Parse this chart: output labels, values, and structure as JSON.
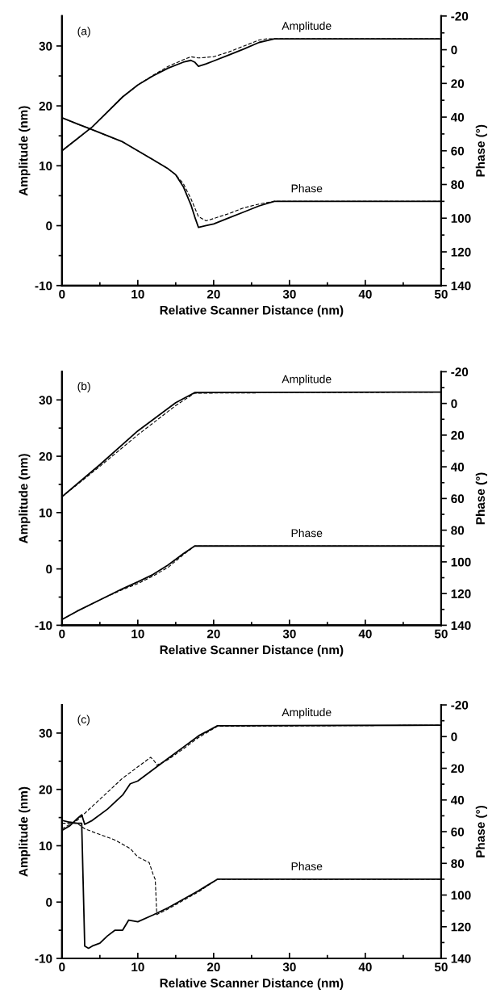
{
  "chart_data": [
    {
      "type": "line",
      "xlabel": "Relative Scanner Distance (nm)",
      "ylabel": "Amplitude (nm)",
      "y2label": "Phase (°)",
      "xlim": [
        0,
        50
      ],
      "xticks": [
        0,
        {
          "value": 5,
          "label": null
        },
        10,
        {
          "value": 15,
          "label": null
        },
        20,
        {
          "value": 25,
          "label": null
        },
        30,
        {
          "value": 35,
          "label": null
        },
        40,
        {
          "value": 45,
          "label": null
        },
        50
      ],
      "ylim": [
        -10,
        35
      ],
      "yticks": [
        -10,
        {
          "value": -5,
          "label": null
        },
        0,
        {
          "value": 5,
          "label": null
        },
        10,
        {
          "value": 15,
          "label": null
        },
        20,
        {
          "value": 25,
          "label": null
        },
        30
      ],
      "y2lim": [
        140,
        -20
      ],
      "y2ticks": [
        140,
        {
          "value": 130,
          "label": null
        },
        120,
        {
          "value": 110,
          "label": null
        },
        100,
        {
          "value": 90,
          "label": null
        },
        80,
        {
          "value": 70,
          "label": null
        },
        60,
        {
          "value": 50,
          "label": null
        },
        40,
        {
          "value": 30,
          "label": null
        },
        20,
        {
          "value": 10,
          "label": null
        },
        0,
        {
          "value": -10,
          "label": null
        },
        -20
      ],
      "series": [
        {
          "name": "Amplitude",
          "color": "#000000",
          "line_style": "solid",
          "x": [
            0,
            2,
            4,
            6,
            8,
            10,
            12,
            14,
            16,
            17,
            17.5,
            18,
            19,
            20,
            22,
            24,
            26,
            28,
            50
          ],
          "values": [
            12.5,
            14.5,
            16.5,
            19,
            21.5,
            23.5,
            25,
            26.3,
            27.3,
            27.6,
            27.3,
            26.6,
            27,
            27.5,
            28.5,
            29.5,
            30.6,
            31.2,
            31.2
          ]
        },
        {
          "color": "#000000",
          "line_style": "dashed",
          "x": [
            0,
            2,
            4,
            6,
            8,
            10,
            12,
            14,
            16,
            17,
            18,
            20,
            22,
            24,
            26,
            27,
            50
          ],
          "values": [
            12.5,
            14.5,
            16.5,
            19,
            21.5,
            23.5,
            25.1,
            26.6,
            27.7,
            28.2,
            28,
            28.2,
            29,
            30,
            31,
            31.2,
            31.2
          ]
        },
        {
          "name": "Phase",
          "color": "#000000",
          "line_style": "solid",
          "axis": "y2",
          "x": [
            0,
            2,
            4,
            6,
            8,
            10,
            12,
            14,
            15,
            16,
            17,
            17.5,
            18,
            19,
            20,
            22,
            24,
            26,
            28,
            50
          ],
          "values": [
            40.4,
            44,
            47.5,
            51.1,
            54.7,
            60,
            65.3,
            70.7,
            74.2,
            81.3,
            92,
            99.1,
            105.5,
            104.4,
            103.4,
            99.8,
            96.3,
            92.7,
            90,
            90
          ]
        },
        {
          "color": "#000000",
          "line_style": "dashed",
          "axis": "y2",
          "x": [
            0,
            2,
            4,
            6,
            8,
            10,
            12,
            14,
            15,
            16,
            17,
            18,
            19,
            20,
            22,
            24,
            26,
            28,
            50
          ],
          "values": [
            40.4,
            44,
            47.5,
            51.1,
            54.7,
            60,
            65.3,
            70.7,
            74.2,
            79.5,
            88.4,
            99.1,
            101.6,
            100.2,
            97.3,
            93.8,
            91.6,
            90,
            90
          ]
        }
      ],
      "annotations": [
        "(a)"
      ]
    },
    {
      "type": "line",
      "xlabel": "Relative Scanner Distance (nm)",
      "ylabel": "Amplitude (nm)",
      "y2label": "Phase (°)",
      "xlim": [
        0,
        50
      ],
      "xticks": [
        0,
        {
          "value": 5,
          "label": null
        },
        10,
        {
          "value": 15,
          "label": null
        },
        20,
        {
          "value": 25,
          "label": null
        },
        30,
        {
          "value": 35,
          "label": null
        },
        40,
        {
          "value": 45,
          "label": null
        },
        50
      ],
      "ylim": [
        -10,
        35
      ],
      "yticks": [
        -10,
        {
          "value": -5,
          "label": null
        },
        0,
        {
          "value": 5,
          "label": null
        },
        10,
        {
          "value": 15,
          "label": null
        },
        20,
        {
          "value": 25,
          "label": null
        },
        30
      ],
      "y2lim": [
        140,
        -20
      ],
      "y2ticks": [
        140,
        {
          "value": 130,
          "label": null
        },
        120,
        {
          "value": 110,
          "label": null
        },
        100,
        {
          "value": 90,
          "label": null
        },
        80,
        {
          "value": 70,
          "label": null
        },
        60,
        {
          "value": 50,
          "label": null
        },
        40,
        {
          "value": 30,
          "label": null
        },
        20,
        {
          "value": 10,
          "label": null
        },
        0,
        {
          "value": -10,
          "label": null
        },
        -20
      ],
      "series": [
        {
          "name": "Amplitude",
          "color": "#000000",
          "line_style": "solid",
          "x": [
            0,
            5,
            10,
            15,
            17.5,
            50
          ],
          "values": [
            12.8,
            18.5,
            24.5,
            29.5,
            31.3,
            31.4
          ]
        },
        {
          "color": "#000000",
          "line_style": "dashed",
          "x": [
            0,
            5,
            10,
            15,
            17.5,
            50
          ],
          "values": [
            12.8,
            18.2,
            23.8,
            29,
            31.2,
            31.4
          ]
        },
        {
          "name": "Phase",
          "color": "#000000",
          "line_style": "solid",
          "axis": "y2",
          "x": [
            0,
            2,
            5,
            8,
            10,
            12,
            14,
            16,
            17.5,
            50
          ],
          "values": [
            136.4,
            131.1,
            124,
            116.9,
            112.6,
            108,
            102,
            94.8,
            90,
            90
          ]
        },
        {
          "color": "#000000",
          "line_style": "dashed",
          "axis": "y2",
          "x": [
            0,
            2,
            5,
            8,
            10,
            12,
            14,
            16,
            17.5,
            50
          ],
          "values": [
            136.4,
            131.1,
            124,
            117.5,
            113.7,
            109,
            103.4,
            95.5,
            90,
            90
          ]
        }
      ],
      "annotations": [
        "(b)"
      ]
    },
    {
      "type": "line",
      "xlabel": "Relative Scanner Distance (nm)",
      "ylabel": "Amplitude (nm)",
      "y2label": "Phase (°)",
      "xlim": [
        0,
        50
      ],
      "xticks": [
        0,
        {
          "value": 5,
          "label": null
        },
        10,
        {
          "value": 15,
          "label": null
        },
        20,
        {
          "value": 25,
          "label": null
        },
        30,
        {
          "value": 35,
          "label": null
        },
        40,
        {
          "value": 45,
          "label": null
        },
        50
      ],
      "ylim": [
        -10,
        35
      ],
      "yticks": [
        -10,
        {
          "value": -5,
          "label": null
        },
        0,
        {
          "value": 5,
          "label": null
        },
        10,
        {
          "value": 15,
          "label": null
        },
        20,
        {
          "value": 25,
          "label": null
        },
        30
      ],
      "y2lim": [
        140,
        -20
      ],
      "y2ticks": [
        140,
        {
          "value": 130,
          "label": null
        },
        120,
        {
          "value": 110,
          "label": null
        },
        100,
        {
          "value": 90,
          "label": null
        },
        80,
        {
          "value": 70,
          "label": null
        },
        60,
        {
          "value": 50,
          "label": null
        },
        40,
        {
          "value": 30,
          "label": null
        },
        20,
        {
          "value": 10,
          "label": null
        },
        0,
        {
          "value": -10,
          "label": null
        },
        -20
      ],
      "series": [
        {
          "name": "Amplitude",
          "color": "#000000",
          "line_style": "solid",
          "x": [
            0,
            1,
            2,
            2.6,
            3,
            4,
            6,
            8,
            9,
            10,
            12,
            14,
            16,
            18,
            20.5,
            50
          ],
          "values": [
            12.7,
            13.5,
            14.8,
            15.5,
            13.8,
            14.5,
            16.5,
            19,
            21,
            21.5,
            23.5,
            25.5,
            27.5,
            29.5,
            31.3,
            31.4
          ]
        },
        {
          "color": "#000000",
          "line_style": "dashed",
          "x": [
            0,
            2,
            4,
            6,
            8,
            10,
            11.7,
            12.2,
            12.5,
            14,
            16,
            18,
            20.5,
            50
          ],
          "values": [
            13,
            14.5,
            17,
            19.5,
            22,
            24,
            25.7,
            25,
            24.3,
            25.3,
            27.2,
            29.2,
            31.2,
            31.4
          ]
        },
        {
          "name": "Phase",
          "color": "#000000",
          "line_style": "solid",
          "axis": "y2",
          "x": [
            0,
            1,
            2,
            2.6,
            3,
            3.5,
            4,
            5,
            6,
            7,
            8,
            8.8,
            10,
            12,
            14,
            16,
            18,
            20.5,
            50
          ],
          "values": [
            52.9,
            54,
            54.7,
            54.7,
            132.2,
            133.6,
            132.2,
            130.4,
            125.8,
            122.2,
            122.2,
            115.8,
            116.9,
            112.6,
            108,
            102.7,
            97.3,
            90,
            90
          ]
        },
        {
          "color": "#000000",
          "line_style": "dashed",
          "axis": "y2",
          "x": [
            0,
            2,
            3,
            5,
            7,
            9,
            10,
            11.5,
            12,
            12.3,
            12.5,
            14,
            16,
            18,
            20.5,
            50
          ],
          "values": [
            54.7,
            54.7,
            58.2,
            61.8,
            65.3,
            70.7,
            76,
            79.5,
            86.7,
            90.2,
            112.3,
            108.8,
            103.4,
            98,
            90,
            90
          ]
        }
      ],
      "annotations": [
        "(c)"
      ]
    }
  ]
}
